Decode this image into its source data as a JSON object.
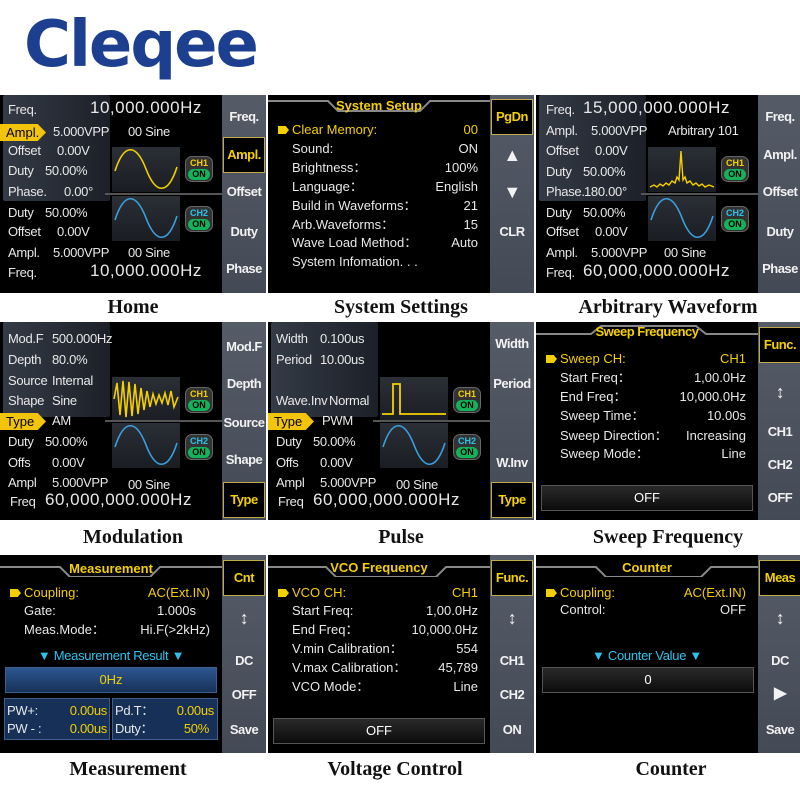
{
  "brand": "Cleqee",
  "colors": {
    "brand": "#1d3f8f",
    "highlight": "#f5d000",
    "ch1": "#f5d000",
    "ch2": "#3aa0e0",
    "on": "#12b35a",
    "result": "#2bc3ee"
  },
  "home": {
    "caption": "Home",
    "ch1": {
      "freq_label": "Freq.",
      "freq": "10,000.000Hz",
      "ampl_label": "Ampl.",
      "ampl": "5.000VPP",
      "wave": "00 Sine",
      "offset_label": "Offset",
      "offset": "0.00V",
      "duty_label": "Duty",
      "duty": "50.00%",
      "phase_label": "Phase.",
      "phase": "0.00°"
    },
    "ch2": {
      "duty_label": "Duty",
      "duty": "50.00%",
      "offset_label": "Offset",
      "offset": "0.00V",
      "ampl_label": "Ampl.",
      "ampl": "5.000VPP",
      "wave": "00 Sine",
      "freq_label": "Freq.",
      "freq": "10,000.000Hz"
    },
    "badges": {
      "ch1": "CH1",
      "ch2": "CH2",
      "on": "ON"
    },
    "softkeys": [
      "Freq.",
      "Ampl.",
      "Offset",
      "Duty",
      "Phase"
    ],
    "active_softkey": "Ampl."
  },
  "system": {
    "caption": "System Settings",
    "title": "System Setup",
    "rows": [
      {
        "label": "Clear Memory:",
        "value": "00"
      },
      {
        "label": "Sound:",
        "value": "ON"
      },
      {
        "label": "Brightness：",
        "value": "100%"
      },
      {
        "label": "Language：",
        "value": "English"
      },
      {
        "label": "Build in Waveforms：",
        "value": "21"
      },
      {
        "label": "Arb.Waveforms：",
        "value": "15"
      },
      {
        "label": "Wave Load Method：",
        "value": "Auto"
      },
      {
        "label": "System Infomation. . .",
        "value": ""
      }
    ],
    "softkeys": [
      "PgDn",
      "▲",
      "▼",
      "CLR"
    ],
    "active_softkey": "PgDn"
  },
  "arb": {
    "caption": "Arbitrary Waveform",
    "ch1": {
      "freq_label": "Freq.",
      "freq": "15,000,000.000Hz",
      "ampl_label": "Ampl.",
      "ampl": "5.000VPP",
      "wave": "Arbitrary 101",
      "offset_label": "Offset",
      "offset": "0.00V",
      "duty_label": "Duty",
      "duty": "50.00%",
      "phase_label": "Phase.",
      "phase": "180.00°"
    },
    "ch2": {
      "duty_label": "Duty",
      "duty": "50.00%",
      "offset_label": "Offset",
      "offset": "0.00V",
      "ampl_label": "Ampl.",
      "ampl": "5.000VPP",
      "wave": "00 Sine",
      "freq_label": "Freq.",
      "freq": "60,000,000.000Hz"
    },
    "softkeys": [
      "Freq.",
      "Ampl.",
      "Offset",
      "Duty",
      "Phase"
    ]
  },
  "mod": {
    "caption": "Modulation",
    "modf_label": "Mod.F",
    "modf": "500.000Hz",
    "depth_label": "Depth",
    "depth": "80.0%",
    "source_label": "Source",
    "source": "Internal",
    "shape_label": "Shape",
    "shape": "Sine",
    "type_label": "Type",
    "type": "AM",
    "duty_label": "Duty",
    "duty": "50.00%",
    "offs_label": "Offs",
    "offs": "0.00V",
    "ampl_label": "Ampl",
    "ampl": "5.000VPP",
    "wave": "00 Sine",
    "freq_label": "Freq",
    "freq": "60,000,000.000Hz",
    "softkeys": [
      "Mod.F",
      "Depth",
      "Source",
      "Shape",
      "Type"
    ],
    "active_softkey": "Type"
  },
  "pulse": {
    "caption": "Pulse",
    "width_label": "Width",
    "width": "0.100us",
    "period_label": "Period",
    "period": "10.00us",
    "inv_label": "Wave.Inv",
    "inv": "Normal",
    "type_label": "Type",
    "type": "PWM",
    "duty_label": "Duty",
    "duty": "50.00%",
    "offs_label": "Offs",
    "offs": "0.00V",
    "ampl_label": "Ampl",
    "ampl": "5.000VPP",
    "wave": "00 Sine",
    "freq_label": "Freq",
    "freq": "60,000,000.000Hz",
    "softkeys": [
      "Width",
      "Period",
      "W.Inv",
      "Type"
    ],
    "active_softkey": "Type"
  },
  "sweep": {
    "caption": "Sweep Frequency",
    "title": "Sweep Frequency",
    "rows": [
      {
        "label": "Sweep CH:",
        "value": "CH1"
      },
      {
        "label": "Start Freq：",
        "value": "1,00.0Hz"
      },
      {
        "label": "End Freq：",
        "value": "10,000.0Hz"
      },
      {
        "label": "Sweep Time：",
        "value": "10.00s"
      },
      {
        "label": "Sweep Direction：",
        "value": "Increasing"
      },
      {
        "label": "Sweep Mode：",
        "value": "Line"
      }
    ],
    "state": "OFF",
    "softkeys": [
      "Func.",
      "↕",
      "CH1",
      "CH2",
      "OFF"
    ],
    "active_softkey": "Func."
  },
  "meas": {
    "caption": "Measurement",
    "title": "Measurement",
    "rows": [
      {
        "label": "Coupling:",
        "value": "AC(Ext.IN)"
      },
      {
        "label": "Gate:",
        "value": "1.000s"
      },
      {
        "label": "Meas.Mode：",
        "value": "Hi.F(>2kHz)"
      }
    ],
    "result_label": "Measurement Result",
    "result": "0Hz",
    "pw_plus_label": "PW+:",
    "pw_plus": "0.00us",
    "pw_minus_label": "PW - :",
    "pw_minus": "0.00us",
    "pdt_label": "Pd.T：",
    "pdt": "0.00us",
    "duty_label": "Duty：",
    "duty": "50%",
    "softkeys": [
      "Cnt",
      "↕",
      "DC",
      "OFF",
      "Save"
    ],
    "active_softkey": "Cnt"
  },
  "vco": {
    "caption": "Voltage Control",
    "title": "VCO Frequency",
    "rows": [
      {
        "label": "VCO CH:",
        "value": "CH1"
      },
      {
        "label": "Start Freq:",
        "value": "1,00.0Hz"
      },
      {
        "label": "End Freq：",
        "value": "10,000.0Hz"
      },
      {
        "label": "V.min Calibration：",
        "value": "554"
      },
      {
        "label": "V.max Calibration：",
        "value": "45,789"
      },
      {
        "label": "VCO Mode：",
        "value": "Line"
      }
    ],
    "state": "OFF",
    "softkeys": [
      "Func.",
      "↕",
      "CH1",
      "CH2",
      "ON"
    ],
    "active_softkey": "Func."
  },
  "counter": {
    "caption": "Counter",
    "title": "Counter",
    "rows": [
      {
        "label": "Coupling:",
        "value": "AC(Ext.IN)"
      },
      {
        "label": "Control:",
        "value": "OFF"
      }
    ],
    "value_label": "Counter  Value",
    "value": "0",
    "softkeys": [
      "Meas",
      "↕",
      "DC",
      "▶",
      "Save"
    ],
    "active_softkey": "Meas"
  }
}
